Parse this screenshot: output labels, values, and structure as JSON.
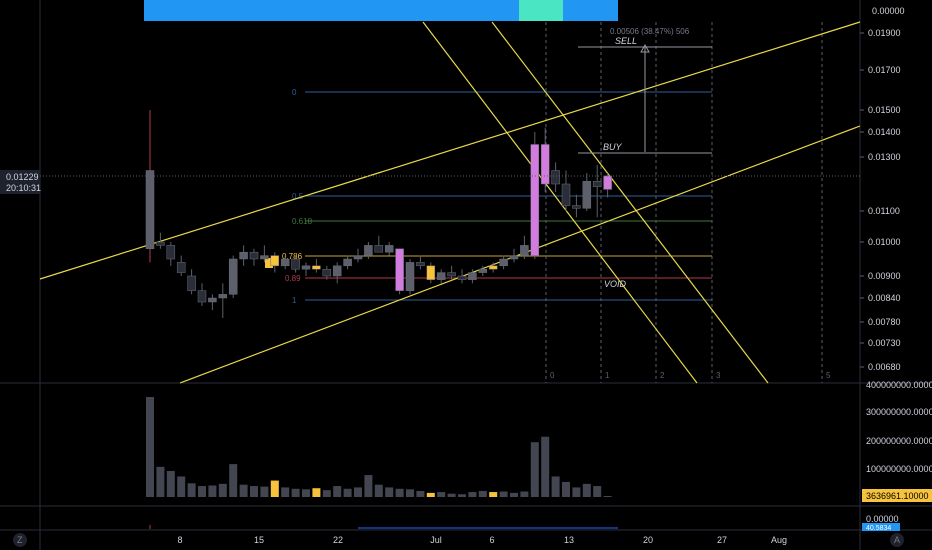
{
  "colors": {
    "background": "#000000",
    "up_candle": "#5d606b",
    "down_candle": "#2a2e39",
    "highlight_candle": "#d37ce0",
    "gold_candle": "#f7c23c",
    "trendline": "#e8d94a",
    "banner_blue": "#2196f3",
    "banner_teal": "#4ae6c4",
    "fib_0": "#2f5f9a",
    "fib_05": "#2f5f9a",
    "fib_0618": "#3d7a3a",
    "fib_0786": "#c8a33a",
    "fib_0886": "#b03a4a",
    "fib_1": "#2f5f9a",
    "grid": "#2a2e39"
  },
  "header": {
    "right_value": "0.00000"
  },
  "price_axis": {
    "labels": [
      "0.01900",
      "0.01700",
      "0.01500",
      "0.01400",
      "0.01300",
      "0.01100",
      "0.01000",
      "0.00900",
      "0.00840",
      "0.00780",
      "0.00730",
      "0.00680"
    ],
    "current_price": "0.01229",
    "countdown": "20:10:31"
  },
  "fib_levels": [
    {
      "label": "0",
      "color_key": "fib_0"
    },
    {
      "label": "0.5",
      "color_key": "fib_05"
    },
    {
      "label": "0.618",
      "color_key": "fib_0618"
    },
    {
      "label": "0.786",
      "color_key": "fib_0786"
    },
    {
      "label": "0.89",
      "color_key": "fib_0886"
    },
    {
      "label": "1",
      "color_key": "fib_1"
    }
  ],
  "annotations": {
    "measure": "0.00506 (38.47%) 506",
    "sell": "SELL",
    "buy": "BUY",
    "void": "VOID"
  },
  "cycle_labels": [
    "0",
    "1",
    "2",
    "3",
    "5"
  ],
  "volume_axis": {
    "labels": [
      "400000000.00000",
      "300000000.00000",
      "200000000.00000",
      "100000000.00000"
    ],
    "current": "3636961.10000"
  },
  "indicator_axis": {
    "label": "0.00000",
    "current": "40.5834"
  },
  "time_axis": {
    "labels": [
      "8",
      "15",
      "22",
      "Jul",
      "6",
      "13",
      "20",
      "27",
      "Aug"
    ]
  },
  "footer": {
    "left_icon": "Z",
    "right_icon": "A"
  },
  "chart_data": {
    "type": "candlestick",
    "candles": [
      {
        "o": 0.0098,
        "h": 0.015,
        "l": 0.0094,
        "c": 0.0125,
        "v": 365000000
      },
      {
        "o": 0.01,
        "h": 0.0103,
        "l": 0.0098,
        "c": 0.0099,
        "v": 110000000
      },
      {
        "o": 0.0099,
        "h": 0.01,
        "l": 0.0093,
        "c": 0.0095,
        "v": 95000000
      },
      {
        "o": 0.0094,
        "h": 0.0096,
        "l": 0.009,
        "c": 0.0091,
        "v": 75000000
      },
      {
        "o": 0.009,
        "h": 0.0092,
        "l": 0.0085,
        "c": 0.0086,
        "v": 50000000
      },
      {
        "o": 0.0086,
        "h": 0.0088,
        "l": 0.0082,
        "c": 0.0083,
        "v": 40000000
      },
      {
        "o": 0.0083,
        "h": 0.0085,
        "l": 0.0081,
        "c": 0.0084,
        "v": 42000000
      },
      {
        "o": 0.0084,
        "h": 0.0088,
        "l": 0.0079,
        "c": 0.0085,
        "v": 48000000
      },
      {
        "o": 0.0085,
        "h": 0.0096,
        "l": 0.0084,
        "c": 0.0095,
        "v": 120000000
      },
      {
        "o": 0.0095,
        "h": 0.0099,
        "l": 0.0093,
        "c": 0.0097,
        "v": 45000000
      },
      {
        "o": 0.0097,
        "h": 0.0098,
        "l": 0.0093,
        "c": 0.0095,
        "v": 40000000
      },
      {
        "o": 0.0095,
        "h": 0.0099,
        "l": 0.0094,
        "c": 0.0096,
        "v": 38000000
      },
      {
        "o": 0.0096,
        "h": 0.0097,
        "l": 0.0091,
        "c": 0.0093,
        "v": 60000000
      },
      {
        "o": 0.0093,
        "h": 0.0096,
        "l": 0.0092,
        "c": 0.0095,
        "v": 35000000
      },
      {
        "o": 0.0095,
        "h": 0.0096,
        "l": 0.0091,
        "c": 0.0092,
        "v": 30000000
      },
      {
        "o": 0.0092,
        "h": 0.0094,
        "l": 0.009,
        "c": 0.0093,
        "v": 28000000
      },
      {
        "o": 0.0093,
        "h": 0.0095,
        "l": 0.0091,
        "c": 0.0092,
        "v": 32000000
      },
      {
        "o": 0.0092,
        "h": 0.0093,
        "l": 0.0089,
        "c": 0.009,
        "v": 25000000
      },
      {
        "o": 0.009,
        "h": 0.0094,
        "l": 0.0088,
        "c": 0.0093,
        "v": 40000000
      },
      {
        "o": 0.0093,
        "h": 0.0096,
        "l": 0.0092,
        "c": 0.0095,
        "v": 30000000
      },
      {
        "o": 0.0095,
        "h": 0.0098,
        "l": 0.0094,
        "c": 0.0096,
        "v": 35000000
      },
      {
        "o": 0.0096,
        "h": 0.01,
        "l": 0.0095,
        "c": 0.0099,
        "v": 80000000
      },
      {
        "o": 0.0099,
        "h": 0.0102,
        "l": 0.0097,
        "c": 0.0097,
        "v": 45000000
      },
      {
        "o": 0.0097,
        "h": 0.01,
        "l": 0.0096,
        "c": 0.0099,
        "v": 35000000
      },
      {
        "o": 0.0098,
        "h": 0.0098,
        "l": 0.0085,
        "c": 0.0086,
        "v": 30000000
      },
      {
        "o": 0.0086,
        "h": 0.0095,
        "l": 0.0085,
        "c": 0.0094,
        "v": 28000000
      },
      {
        "o": 0.0094,
        "h": 0.0096,
        "l": 0.0092,
        "c": 0.0093,
        "v": 22000000
      },
      {
        "o": 0.0093,
        "h": 0.0094,
        "l": 0.0088,
        "c": 0.0089,
        "v": 15000000
      },
      {
        "o": 0.0089,
        "h": 0.0092,
        "l": 0.0088,
        "c": 0.0091,
        "v": 18000000
      },
      {
        "o": 0.0091,
        "h": 0.0093,
        "l": 0.0089,
        "c": 0.009,
        "v": 12000000
      },
      {
        "o": 0.009,
        "h": 0.0092,
        "l": 0.0088,
        "c": 0.0089,
        "v": 10000000
      },
      {
        "o": 0.0089,
        "h": 0.0092,
        "l": 0.0088,
        "c": 0.0091,
        "v": 18000000
      },
      {
        "o": 0.0091,
        "h": 0.0093,
        "l": 0.009,
        "c": 0.0092,
        "v": 22000000
      },
      {
        "o": 0.0092,
        "h": 0.0094,
        "l": 0.0091,
        "c": 0.0093,
        "v": 18000000
      },
      {
        "o": 0.0093,
        "h": 0.0096,
        "l": 0.0092,
        "c": 0.0095,
        "v": 20000000
      },
      {
        "o": 0.0095,
        "h": 0.0098,
        "l": 0.0094,
        "c": 0.0096,
        "v": 15000000
      },
      {
        "o": 0.0096,
        "h": 0.0102,
        "l": 0.0095,
        "c": 0.0099,
        "v": 20000000
      },
      {
        "o": 0.0096,
        "h": 0.014,
        "l": 0.0095,
        "c": 0.0135,
        "v": 200000000
      },
      {
        "o": 0.012,
        "h": 0.0142,
        "l": 0.0117,
        "c": 0.0135,
        "v": 220000000
      },
      {
        "o": 0.0125,
        "h": 0.0128,
        "l": 0.0117,
        "c": 0.012,
        "v": 75000000
      },
      {
        "o": 0.012,
        "h": 0.0125,
        "l": 0.011,
        "c": 0.0112,
        "v": 55000000
      },
      {
        "o": 0.0112,
        "h": 0.0116,
        "l": 0.0108,
        "c": 0.0111,
        "v": 35000000
      },
      {
        "o": 0.0111,
        "h": 0.0124,
        "l": 0.011,
        "c": 0.0121,
        "v": 48000000
      },
      {
        "o": 0.0121,
        "h": 0.0127,
        "l": 0.0108,
        "c": 0.0119,
        "v": 40000000
      },
      {
        "o": 0.0118,
        "h": 0.0124,
        "l": 0.0115,
        "c": 0.0123,
        "v": 3636961
      }
    ]
  }
}
